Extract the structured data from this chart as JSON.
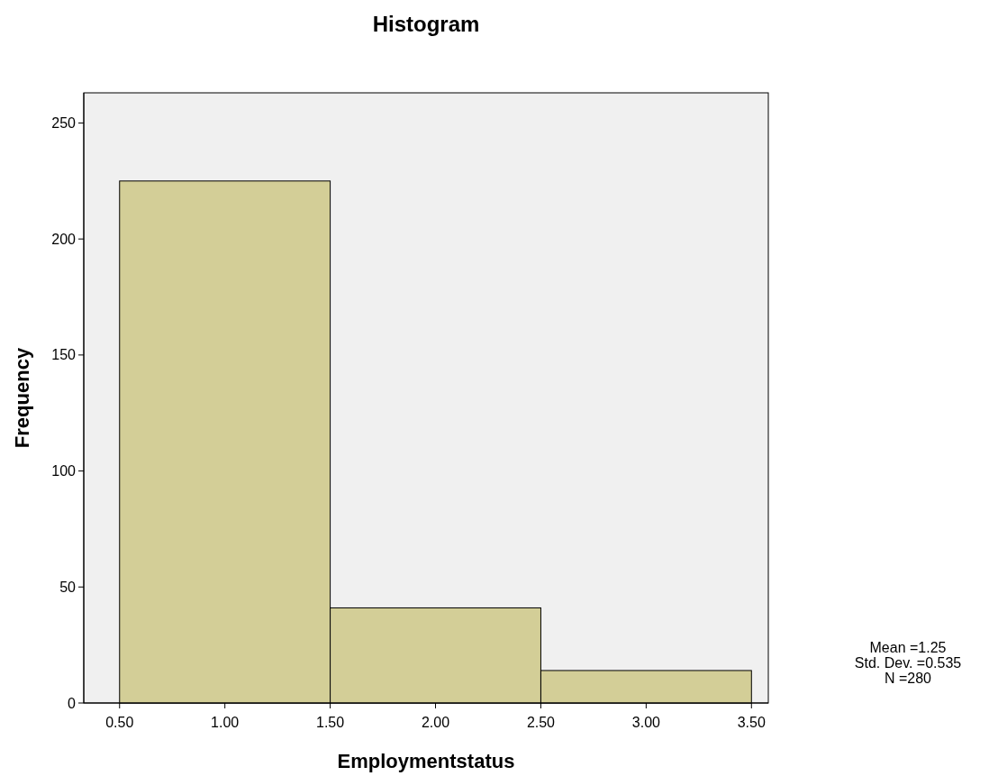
{
  "chart_data": {
    "type": "histogram",
    "title": "Histogram",
    "xlabel": "Employmentstatus",
    "ylabel": "Frequency",
    "bins": [
      0.5,
      1.5,
      2.5,
      3.5
    ],
    "values": [
      225,
      41,
      14
    ],
    "color": "#d3ce97",
    "xlim": [
      0.33,
      3.58
    ],
    "xticks": [
      {
        "value": 0.5,
        "label": "0.50"
      },
      {
        "value": 1,
        "label": "1.00"
      },
      {
        "value": 1.5,
        "label": "1.50"
      },
      {
        "value": 2,
        "label": "2.00"
      },
      {
        "value": 2.5,
        "label": "2.50"
      },
      {
        "value": 3,
        "label": "3.00"
      },
      {
        "value": 3.5,
        "label": "3.50"
      }
    ],
    "ylim": [
      0,
      263
    ],
    "yticks": [
      0,
      50,
      100,
      150,
      200,
      250
    ],
    "grid": false,
    "annotations": [
      "Mean =1.25",
      "Std. Dev. =0.535",
      "N =280"
    ]
  }
}
